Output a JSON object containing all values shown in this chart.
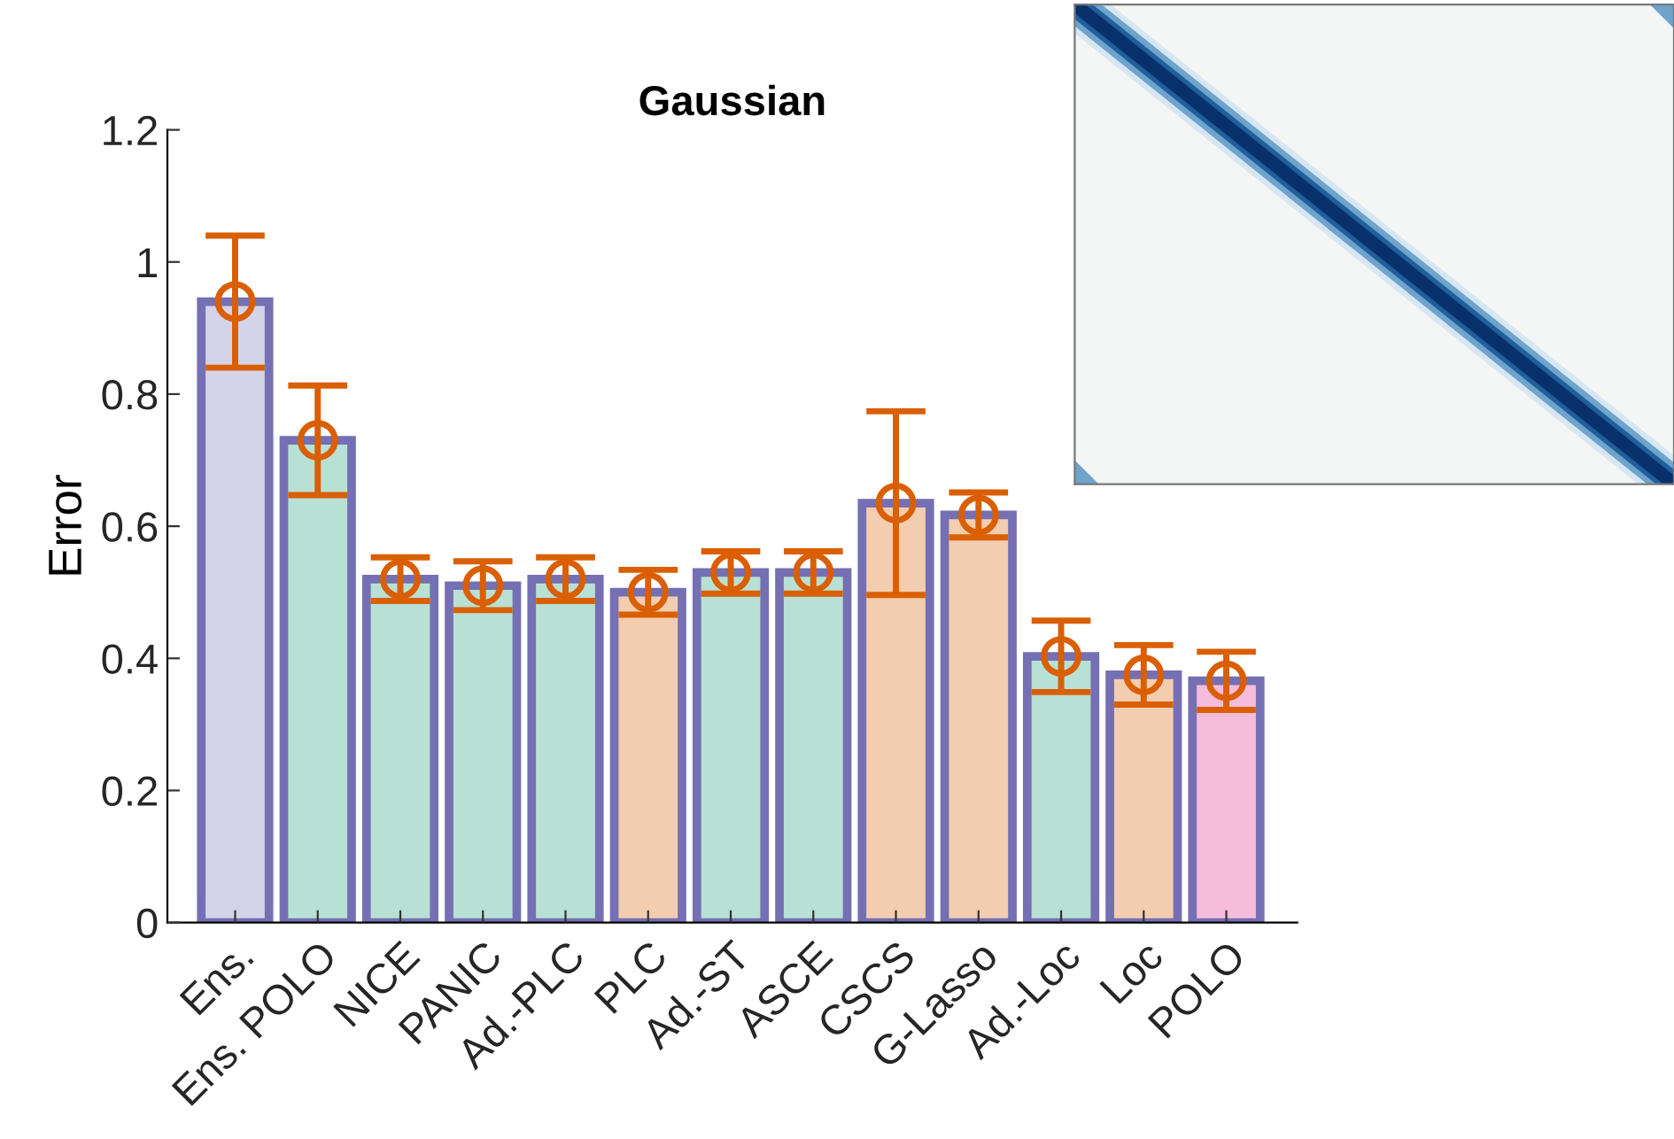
{
  "chart_data": {
    "type": "bar",
    "title": "Gaussian",
    "ylabel": "Error",
    "categories": [
      "Ens.",
      "Ens. POLO",
      "NICE",
      "PANIC",
      "Ad.-PLC",
      "PLC",
      "Ad.-ST",
      "ASCE",
      "CSCS",
      "G-Lasso",
      "Ad.-Loc",
      "Loc",
      "POLO"
    ],
    "series": [
      {
        "values": [
          0.94,
          0.73,
          0.52,
          0.51,
          0.52,
          0.5,
          0.53,
          0.53,
          0.635,
          0.617,
          0.403,
          0.375,
          0.366
        ],
        "colors": [
          "#d5d3e8",
          "#b8e0d4",
          "#b8e0d4",
          "#b8e0d4",
          "#b8e0d4",
          "#f3cdb0",
          "#b8e0d4",
          "#b8e0d4",
          "#f3cdb0",
          "#f3cdb0",
          "#b8e0d4",
          "#f3cdb0",
          "#f5bcdb"
        ]
      },
      {
        "type": "scatter",
        "color": "#d95f02",
        "marker": "circle",
        "x": [
          "Ens.",
          "Ens. POLO",
          "NICE",
          "PANIC",
          "Ad.-PLC",
          "PLC",
          "Ad.-ST",
          "ASCE",
          "CSCS",
          "G-Lasso",
          "Ad.-Loc",
          "Loc",
          "POLO"
        ],
        "values": [
          0.94,
          0.73,
          0.52,
          0.51,
          0.52,
          0.5,
          0.53,
          0.53,
          0.635,
          0.617,
          0.403,
          0.375,
          0.366
        ],
        "errors": [
          0.1,
          0.083,
          0.033,
          0.037,
          0.033,
          0.034,
          0.032,
          0.032,
          0.139,
          0.034,
          0.054,
          0.045,
          0.044
        ]
      }
    ],
    "ylim": [
      0,
      1.2
    ],
    "yticks": [
      0,
      0.2,
      0.4,
      0.6,
      0.8,
      1,
      1.2
    ],
    "grid": false
  }
}
